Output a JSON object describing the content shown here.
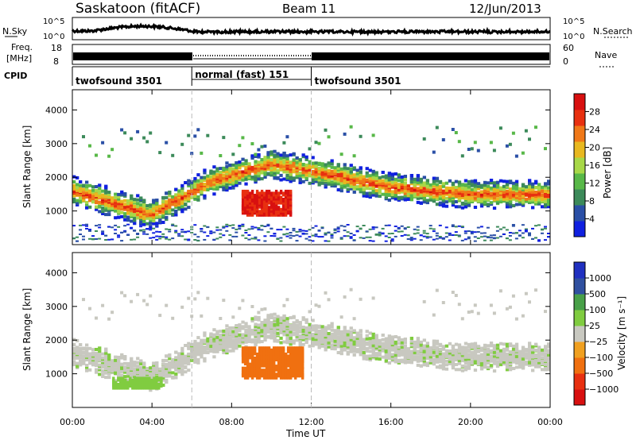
{
  "header": {
    "station": "Saskatoon (fitACF)",
    "beam": "Beam 11",
    "date": "12/Jun/2013"
  },
  "strips": {
    "nsky_label": "N.Sky",
    "nsearch_label": "N.Search",
    "freq_label_1": "Freq.",
    "freq_label_2": "[MHz]",
    "nave_label": "Nave",
    "cpid_label": "CPID",
    "noise_ticks_left": [
      "10^5",
      "10^0"
    ],
    "noise_ticks_right": [
      "10^5",
      "10^0"
    ],
    "freq_ticks_left": [
      "18",
      "8"
    ],
    "freq_ticks_right": [
      "60",
      "0"
    ]
  },
  "cpid_segments": [
    {
      "label": "twofsound 3501",
      "start_h": 0,
      "end_h": 6
    },
    {
      "label": "normal (fast) 151",
      "start_h": 6,
      "end_h": 12
    },
    {
      "label": "twofsound 3501",
      "start_h": 12,
      "end_h": 24
    }
  ],
  "colors": {
    "power_scale": [
      "#1020e0",
      "#2a4fa6",
      "#3c8a5a",
      "#58b848",
      "#a8d848",
      "#e8b820",
      "#f07818",
      "#e83010",
      "#d81010"
    ],
    "velocity_scale": [
      "#2030c0",
      "#3050a0",
      "#48a048",
      "#80cc40",
      "#c8c8c0",
      "#f0a020",
      "#f07010",
      "#e83010",
      "#d81010"
    ]
  },
  "chart_data": [
    {
      "type": "heatmap",
      "name": "power",
      "ylabel": "Slant Range [km]",
      "yticks": [
        "1000",
        "2000",
        "3000",
        "4000"
      ],
      "ylim": [
        0,
        4600
      ],
      "xlim": [
        0,
        24
      ],
      "colorbar_label": "Power [dB]",
      "colorbar_ticks": [
        "4",
        "8",
        "12",
        "16",
        "20",
        "24",
        "28"
      ],
      "colorbar_range": [
        0,
        32
      ],
      "features": [
        {
          "desc": "main scatter band",
          "range_km_at_hours": [
            [
              0,
              1600
            ],
            [
              4,
              900
            ],
            [
              7,
              1900
            ],
            [
              10,
              2400
            ],
            [
              12,
              2200
            ],
            [
              16,
              1700
            ],
            [
              20,
              1500
            ],
            [
              24,
              1500
            ]
          ],
          "power_db": 22
        },
        {
          "desc": "strong echo patch",
          "hours": [
            8.5,
            11.0
          ],
          "range_km": [
            900,
            1600
          ],
          "power_db": 28
        }
      ]
    },
    {
      "type": "heatmap",
      "name": "velocity",
      "xlabel": "Time UT",
      "xticks": [
        "00:00",
        "04:00",
        "08:00",
        "12:00",
        "16:00",
        "20:00",
        "00:00"
      ],
      "ylabel": "Slant Range [km]",
      "yticks": [
        "1000",
        "2000",
        "3000",
        "4000"
      ],
      "ylim": [
        0,
        4600
      ],
      "xlim": [
        0,
        24
      ],
      "colorbar_label": "Velocity [m s⁻¹]",
      "colorbar_ticks": [
        "1000",
        "500",
        "100",
        "25",
        "−25",
        "−100",
        "−500",
        "−1000"
      ],
      "features": [
        {
          "desc": "ground scatter band",
          "velocity_ms": 0
        },
        {
          "desc": "positive velocity patch",
          "hours": [
            2.0,
            4.5
          ],
          "range_km": [
            600,
            900
          ],
          "velocity_ms": 200
        },
        {
          "desc": "negative velocity patch",
          "hours": [
            8.5,
            11.5
          ],
          "range_km": [
            900,
            1800
          ],
          "velocity_ms": -400
        }
      ]
    }
  ]
}
